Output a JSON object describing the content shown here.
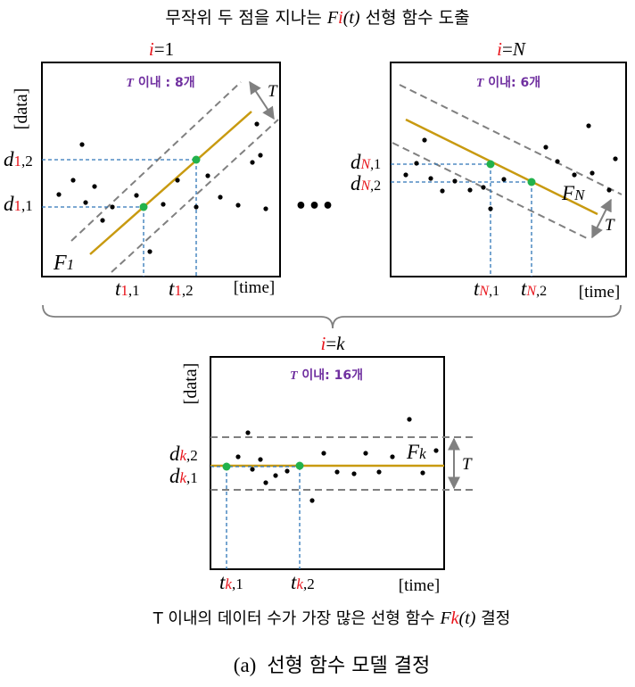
{
  "title": {
    "prefix": "무작위 두 점을 지나는 ",
    "f": "F",
    "i": "i",
    "t": "(t)",
    "suffix": " 선형 함수 도출"
  },
  "panels": {
    "one": {
      "i": "i",
      "eq": "=1",
      "count_t": "T",
      "count_rest": " 이내 : 8개",
      "func_F": "F",
      "func_sub": "1",
      "band_T": "T",
      "d2": {
        "d": "d",
        "sub_a": "1",
        "sub_b": ",2"
      },
      "d1": {
        "d": "d",
        "sub_a": "1",
        "sub_b": ",1"
      },
      "t1": {
        "t": "t",
        "sub_a": "1",
        "sub_b": ",1"
      },
      "t2": {
        "t": "t",
        "sub_a": "1",
        "sub_b": ",2"
      },
      "ylabel": "[data]",
      "xlabel": "[time]"
    },
    "n": {
      "i": "i",
      "eq": "=",
      "eq_n": "N",
      "count_t": "T",
      "count_rest": " 이내: 6개",
      "func_F": "F",
      "func_sub": "N",
      "band_T": "T",
      "d1": {
        "d": "d",
        "sub_a": "N",
        "sub_b": ",1"
      },
      "d2": {
        "d": "d",
        "sub_a": "N",
        "sub_b": ",2"
      },
      "t1": {
        "t": "t",
        "sub_a": "N",
        "sub_b": ",1"
      },
      "t2": {
        "t": "t",
        "sub_a": "N",
        "sub_b": ",2"
      },
      "xlabel": "[time]"
    },
    "k": {
      "i": "i",
      "eq": "=",
      "eq_k": "k",
      "count_t": "T",
      "count_rest": " 이내: 16개",
      "func_F": "F",
      "func_sub": "k",
      "band_T": "T",
      "d2": {
        "d": "d",
        "sub_a": "k",
        "sub_b": ",2"
      },
      "d1": {
        "d": "d",
        "sub_a": "k",
        "sub_b": ",1"
      },
      "t1": {
        "t": "t",
        "sub_a": "k",
        "sub_b": ",1"
      },
      "t2": {
        "t": "t",
        "sub_a": "k",
        "sub_b": ",2"
      },
      "ylabel": "[data]",
      "xlabel": "[time]"
    }
  },
  "ellipsis": "•••",
  "conclusion": {
    "prefix": "T 이내의 데이터 수가 가장 많은 선형 함수 ",
    "f": "F",
    "k": "k",
    "t": "(t)",
    "suffix": " 결정"
  },
  "caption": {
    "label": "(a)",
    "text": "선형 함수 모델 결정"
  },
  "colors": {
    "red": "#e8141b",
    "purple": "#7030a0",
    "line": "#c89a10",
    "green": "#22b24c",
    "dash": "#808080",
    "guide": "#2e75b6"
  }
}
